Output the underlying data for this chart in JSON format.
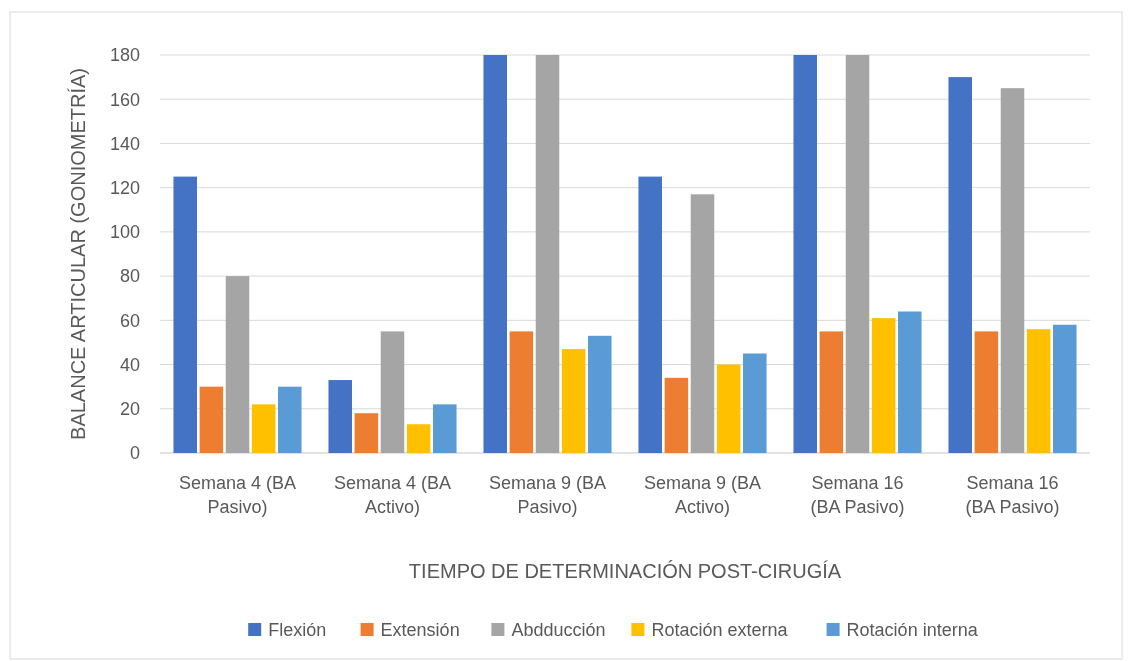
{
  "chart_data": {
    "type": "bar",
    "xlabel": "TIEMPO DE DETERMINACIÓN POST-CIRUGÍA",
    "ylabel": "BALANCE ARTICULAR (GONIOMETRÍA)",
    "categories": [
      "Semana 4 (BA Pasivo)",
      "Semana 4 (BA Activo)",
      "Semana 9 (BA Pasivo)",
      "Semana 9 (BA Activo)",
      "Semana 16 (BA Pasivo)",
      "Semana 16 (BA Pasivo)"
    ],
    "series": [
      {
        "name": "Flexión",
        "color": "#4472c4",
        "values": [
          125,
          33,
          180,
          125,
          180,
          170
        ]
      },
      {
        "name": "Extensión",
        "color": "#ed7d31",
        "values": [
          30,
          18,
          55,
          34,
          55,
          55
        ]
      },
      {
        "name": "Abdducción",
        "color": "#a5a5a5",
        "values": [
          80,
          55,
          180,
          117,
          180,
          165
        ]
      },
      {
        "name": "Rotación externa",
        "color": "#ffc000",
        "values": [
          22,
          13,
          47,
          40,
          61,
          56
        ]
      },
      {
        "name": "Rotación interna",
        "color": "#5b9bd5",
        "values": [
          30,
          22,
          53,
          45,
          64,
          58
        ]
      }
    ],
    "ylim": [
      0,
      180
    ],
    "yticks": [
      0,
      20,
      40,
      60,
      80,
      100,
      120,
      140,
      160,
      180
    ],
    "grid": "y",
    "legend": "bottom"
  }
}
